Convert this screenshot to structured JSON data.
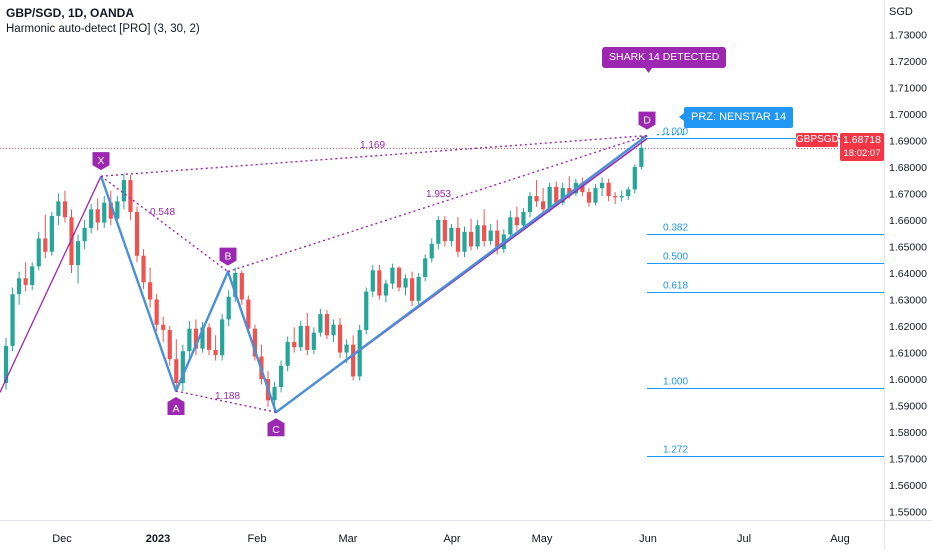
{
  "header": {
    "title": "GBP/SGD, 1D, OANDA",
    "indicator": "Harmonic auto-detect [PRO] (3, 30, 2)"
  },
  "axis": {
    "currency": "SGD"
  },
  "price_tag": {
    "symbol": "GBPSGD",
    "value": "1.68718",
    "countdown": "18:02:07"
  },
  "badges": {
    "shark": "SHARK 14 DETECTED",
    "prz": "PRZ: NENSTAR 14"
  },
  "colors": {
    "bull": "#26a69a",
    "bear": "#ef5350",
    "pattern_line": "#4a90d9",
    "dotted": "#9c27b0",
    "trend": "#9c27b0",
    "fib": "#2196f3",
    "point_label_bg": "#9c27b0",
    "price_tag": "#f23645"
  },
  "chart_data": {
    "type": "candlestick",
    "yaxis": {
      "ticks": [
        "1.55000",
        "1.56000",
        "1.57000",
        "1.58000",
        "1.59000",
        "1.60000",
        "1.61000",
        "1.62000",
        "1.63000",
        "1.64000",
        "1.65000",
        "1.66000",
        "1.67000",
        "1.68000",
        "1.69000",
        "1.70000",
        "1.71000",
        "1.72000",
        "1.73000"
      ],
      "ylim": [
        1.548,
        1.735
      ]
    },
    "xaxis": {
      "tick_labels": [
        "Dec",
        "2023",
        "Feb",
        "Mar",
        "Apr",
        "May",
        "Jun",
        "Jul",
        "Aug"
      ]
    },
    "pattern": {
      "name": "Shark",
      "points": [
        {
          "label": "X",
          "price": 1.6765
        },
        {
          "label": "A",
          "price": 1.5955
        },
        {
          "label": "B",
          "price": 1.6405
        },
        {
          "label": "C",
          "price": 1.5875
        },
        {
          "label": "D",
          "price": 1.6918
        }
      ],
      "ratios": [
        {
          "text": "0.548"
        },
        {
          "text": "1.188"
        },
        {
          "text": "1.169"
        },
        {
          "text": "1.953"
        }
      ]
    },
    "fib_levels": [
      {
        "label": "0.000",
        "price": 1.691
      },
      {
        "label": "0.382",
        "price": 1.6548
      },
      {
        "label": "0.500",
        "price": 1.6438
      },
      {
        "label": "0.618",
        "price": 1.6328
      },
      {
        "label": "1.000",
        "price": 1.5965
      },
      {
        "label": "1.272",
        "price": 1.571
      }
    ],
    "current_price": 1.68718,
    "candles": [
      [
        1.5985,
        1.6155,
        1.596,
        1.6125
      ],
      [
        1.6125,
        1.6345,
        1.6105,
        1.632
      ],
      [
        1.632,
        1.6405,
        1.628,
        1.638
      ],
      [
        1.638,
        1.644,
        1.633,
        1.6355
      ],
      [
        1.6355,
        1.644,
        1.6335,
        1.6425
      ],
      [
        1.6425,
        1.6555,
        1.641,
        1.653
      ],
      [
        1.653,
        1.662,
        1.6455,
        1.648
      ],
      [
        1.648,
        1.663,
        1.6465,
        1.6615
      ],
      [
        1.6615,
        1.67,
        1.658,
        1.667
      ],
      [
        1.667,
        1.671,
        1.659,
        1.661
      ],
      [
        1.661,
        1.664,
        1.64,
        1.643
      ],
      [
        1.643,
        1.6545,
        1.636,
        1.652
      ],
      [
        1.652,
        1.66,
        1.649,
        1.657
      ],
      [
        1.657,
        1.666,
        1.655,
        1.664
      ],
      [
        1.664,
        1.668,
        1.656,
        1.659
      ],
      [
        1.659,
        1.669,
        1.657,
        1.6665
      ],
      [
        1.6665,
        1.671,
        1.658,
        1.6605
      ],
      [
        1.6605,
        1.669,
        1.659,
        1.667
      ],
      [
        1.667,
        1.6775,
        1.664,
        1.675
      ],
      [
        1.675,
        1.677,
        1.66,
        1.663
      ],
      [
        1.663,
        1.665,
        1.644,
        1.6465
      ],
      [
        1.6465,
        1.649,
        1.634,
        1.6365
      ],
      [
        1.6365,
        1.642,
        1.627,
        1.63
      ],
      [
        1.63,
        1.632,
        1.618,
        1.6205
      ],
      [
        1.6205,
        1.6235,
        1.614,
        1.6185
      ],
      [
        1.6185,
        1.62,
        1.605,
        1.6075
      ],
      [
        1.6075,
        1.615,
        1.596,
        1.5985
      ],
      [
        1.5985,
        1.613,
        1.5955,
        1.6105
      ],
      [
        1.6105,
        1.622,
        1.608,
        1.619
      ],
      [
        1.619,
        1.6225,
        1.609,
        1.6115
      ],
      [
        1.6115,
        1.6215,
        1.61,
        1.6195
      ],
      [
        1.6195,
        1.621,
        1.609,
        1.611
      ],
      [
        1.611,
        1.6165,
        1.607,
        1.609
      ],
      [
        1.609,
        1.6245,
        1.607,
        1.6225
      ],
      [
        1.6225,
        1.6335,
        1.62,
        1.631
      ],
      [
        1.631,
        1.642,
        1.629,
        1.64
      ],
      [
        1.64,
        1.641,
        1.628,
        1.63
      ],
      [
        1.63,
        1.6315,
        1.617,
        1.619
      ],
      [
        1.619,
        1.6205,
        1.607,
        1.6085
      ],
      [
        1.6085,
        1.613,
        1.598,
        1.6
      ],
      [
        1.6,
        1.603,
        1.5895,
        1.592
      ],
      [
        1.592,
        1.599,
        1.5875,
        1.597
      ],
      [
        1.597,
        1.607,
        1.595,
        1.605
      ],
      [
        1.605,
        1.616,
        1.603,
        1.614
      ],
      [
        1.614,
        1.6195,
        1.61,
        1.612
      ],
      [
        1.612,
        1.622,
        1.6105,
        1.62
      ],
      [
        1.62,
        1.625,
        1.609,
        1.611
      ],
      [
        1.611,
        1.6195,
        1.6095,
        1.6175
      ],
      [
        1.6175,
        1.6265,
        1.616,
        1.6245
      ],
      [
        1.6245,
        1.626,
        1.615,
        1.6165
      ],
      [
        1.6165,
        1.6225,
        1.614,
        1.6205
      ],
      [
        1.6205,
        1.623,
        1.608,
        1.61
      ],
      [
        1.61,
        1.615,
        1.606,
        1.613
      ],
      [
        1.613,
        1.6165,
        1.5995,
        1.601
      ],
      [
        1.601,
        1.6205,
        1.5995,
        1.6185
      ],
      [
        1.6185,
        1.6345,
        1.617,
        1.633
      ],
      [
        1.633,
        1.643,
        1.631,
        1.641
      ],
      [
        1.641,
        1.643,
        1.63,
        1.6315
      ],
      [
        1.6315,
        1.6375,
        1.629,
        1.636
      ],
      [
        1.636,
        1.6435,
        1.634,
        1.642
      ],
      [
        1.642,
        1.6425,
        1.633,
        1.6345
      ],
      [
        1.6345,
        1.6395,
        1.6315,
        1.638
      ],
      [
        1.638,
        1.6405,
        1.6275,
        1.6295
      ],
      [
        1.6295,
        1.64,
        1.628,
        1.6385
      ],
      [
        1.6385,
        1.647,
        1.637,
        1.6455
      ],
      [
        1.6455,
        1.653,
        1.644,
        1.651
      ],
      [
        1.651,
        1.6615,
        1.649,
        1.66
      ],
      [
        1.66,
        1.6615,
        1.65,
        1.652
      ],
      [
        1.652,
        1.6585,
        1.65,
        1.657
      ],
      [
        1.657,
        1.661,
        1.646,
        1.648
      ],
      [
        1.648,
        1.6575,
        1.646,
        1.6555
      ],
      [
        1.6555,
        1.6605,
        1.6485,
        1.65
      ],
      [
        1.65,
        1.66,
        1.649,
        1.658
      ],
      [
        1.658,
        1.664,
        1.65,
        1.652
      ],
      [
        1.652,
        1.6585,
        1.6505,
        1.656
      ],
      [
        1.656,
        1.66,
        1.647,
        1.649
      ],
      [
        1.649,
        1.6565,
        1.6475,
        1.6545
      ],
      [
        1.6545,
        1.6635,
        1.653,
        1.661
      ],
      [
        1.661,
        1.665,
        1.656,
        1.658
      ],
      [
        1.658,
        1.6645,
        1.656,
        1.663
      ],
      [
        1.663,
        1.6705,
        1.661,
        1.669
      ],
      [
        1.669,
        1.675,
        1.665,
        1.667
      ],
      [
        1.667,
        1.672,
        1.662,
        1.664
      ],
      [
        1.664,
        1.674,
        1.663,
        1.6725
      ],
      [
        1.6725,
        1.6745,
        1.665,
        1.6665
      ],
      [
        1.6665,
        1.674,
        1.6655,
        1.672
      ],
      [
        1.672,
        1.6765,
        1.668,
        1.67
      ],
      [
        1.67,
        1.6755,
        1.669,
        1.674
      ],
      [
        1.674,
        1.676,
        1.669,
        1.6705
      ],
      [
        1.6705,
        1.672,
        1.665,
        1.6665
      ],
      [
        1.6665,
        1.6735,
        1.6655,
        1.672
      ],
      [
        1.672,
        1.676,
        1.669,
        1.674
      ],
      [
        1.674,
        1.6755,
        1.667,
        1.669
      ],
      [
        1.669,
        1.6705,
        1.666,
        1.6685
      ],
      [
        1.6685,
        1.671,
        1.667,
        1.669
      ],
      [
        1.669,
        1.6725,
        1.6675,
        1.6715
      ],
      [
        1.6715,
        1.681,
        1.67,
        1.68
      ],
      [
        1.68,
        1.6918,
        1.679,
        1.6872
      ]
    ]
  }
}
